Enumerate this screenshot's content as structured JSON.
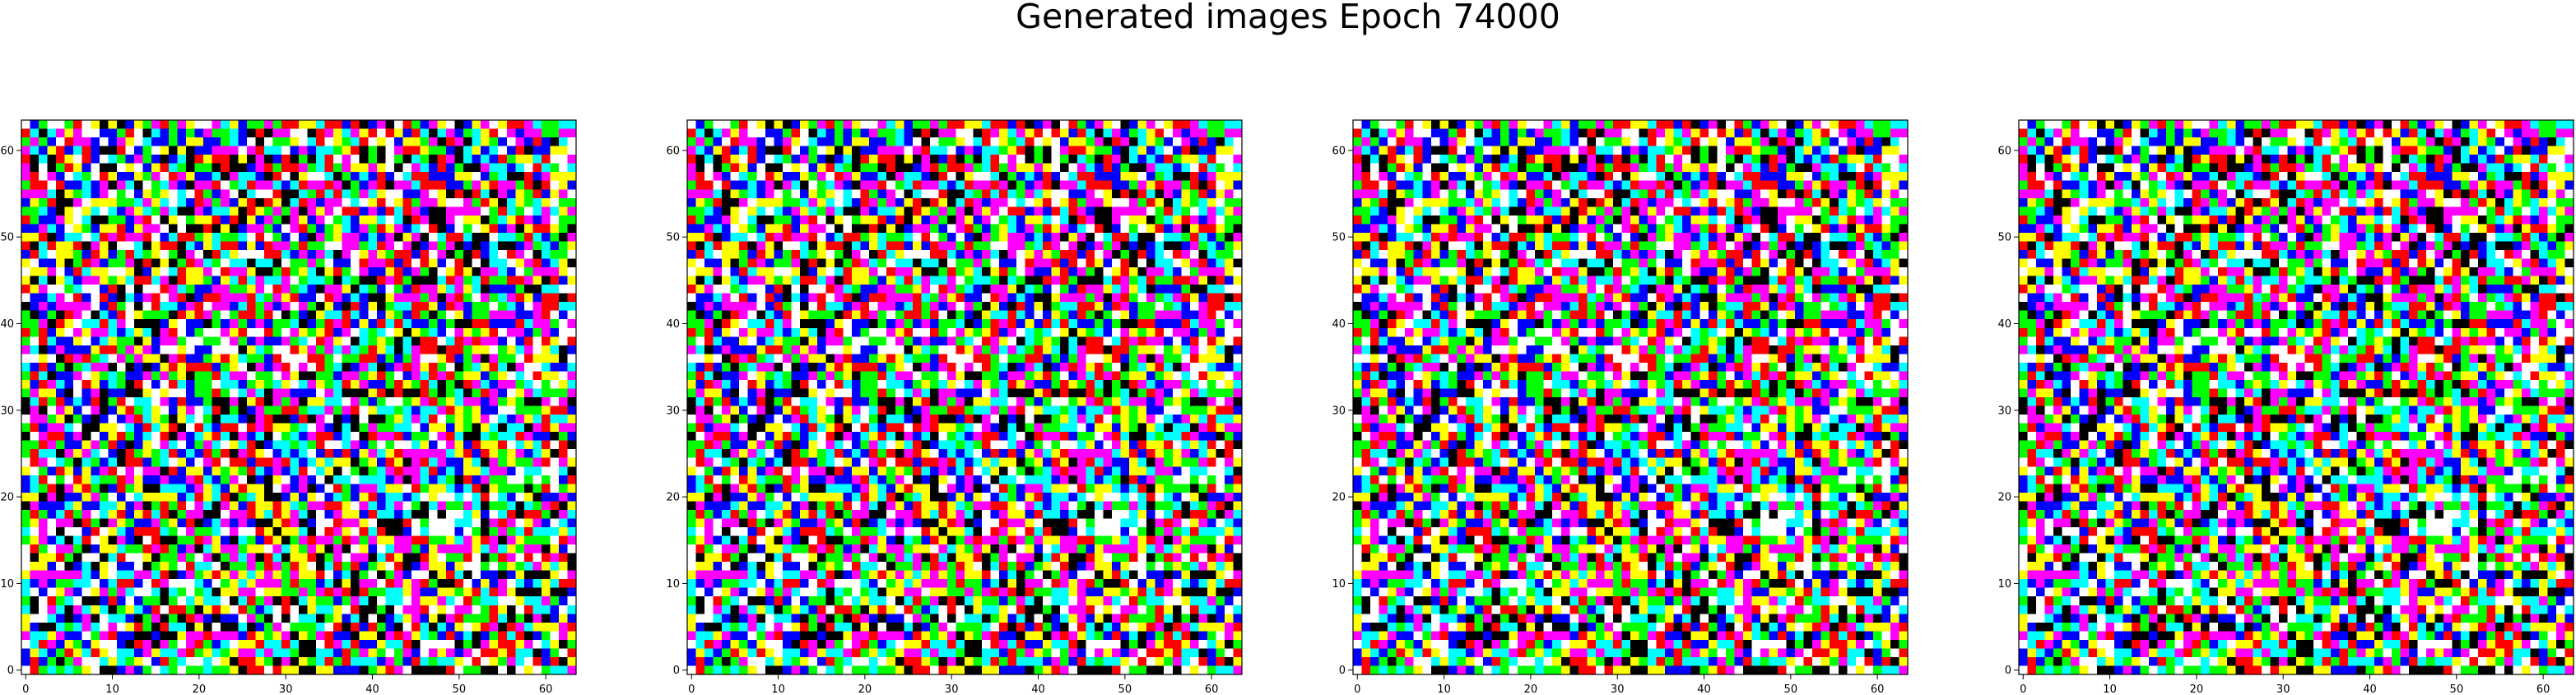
{
  "title": "Generated images Epoch 74000",
  "chart_data": [
    {
      "type": "heatmap",
      "title": "",
      "xlabel": "",
      "ylabel": "",
      "grid_size": [
        64,
        64
      ],
      "xlim": [
        -0.5,
        63.5
      ],
      "ylim": [
        63.5,
        -0.5
      ],
      "xticks": [
        0,
        10,
        20,
        30,
        40,
        50,
        60
      ],
      "yticks": [
        0,
        10,
        20,
        30,
        40,
        50,
        60
      ],
      "palette": [
        "#ff0000",
        "#00ff00",
        "#0000ff",
        "#ffff00",
        "#ff00ff",
        "#00ffff",
        "#000000",
        "#ffffff"
      ],
      "seed": 74000
    },
    {
      "type": "heatmap",
      "title": "",
      "xlabel": "",
      "ylabel": "",
      "grid_size": [
        64,
        64
      ],
      "xlim": [
        -0.5,
        63.5
      ],
      "ylim": [
        63.5,
        -0.5
      ],
      "xticks": [
        0,
        10,
        20,
        30,
        40,
        50,
        60
      ],
      "yticks": [
        0,
        10,
        20,
        30,
        40,
        50,
        60
      ],
      "palette": [
        "#ff0000",
        "#00ff00",
        "#0000ff",
        "#ffff00",
        "#ff00ff",
        "#00ffff",
        "#000000",
        "#ffffff"
      ],
      "seed": 74000
    },
    {
      "type": "heatmap",
      "title": "",
      "xlabel": "",
      "ylabel": "",
      "grid_size": [
        64,
        64
      ],
      "xlim": [
        -0.5,
        63.5
      ],
      "ylim": [
        63.5,
        -0.5
      ],
      "xticks": [
        0,
        10,
        20,
        30,
        40,
        50,
        60
      ],
      "yticks": [
        0,
        10,
        20,
        30,
        40,
        50,
        60
      ],
      "palette": [
        "#ff0000",
        "#00ff00",
        "#0000ff",
        "#ffff00",
        "#ff00ff",
        "#00ffff",
        "#000000",
        "#ffffff"
      ],
      "seed": 74000
    },
    {
      "type": "heatmap",
      "title": "",
      "xlabel": "",
      "ylabel": "",
      "grid_size": [
        64,
        64
      ],
      "xlim": [
        -0.5,
        63.5
      ],
      "ylim": [
        63.5,
        -0.5
      ],
      "xticks": [
        0,
        10,
        20,
        30,
        40,
        50,
        60
      ],
      "yticks": [
        0,
        10,
        20,
        30,
        40,
        50,
        60
      ],
      "palette": [
        "#ff0000",
        "#00ff00",
        "#0000ff",
        "#ffff00",
        "#ff00ff",
        "#00ffff",
        "#000000",
        "#ffffff"
      ],
      "seed": 74000
    }
  ]
}
